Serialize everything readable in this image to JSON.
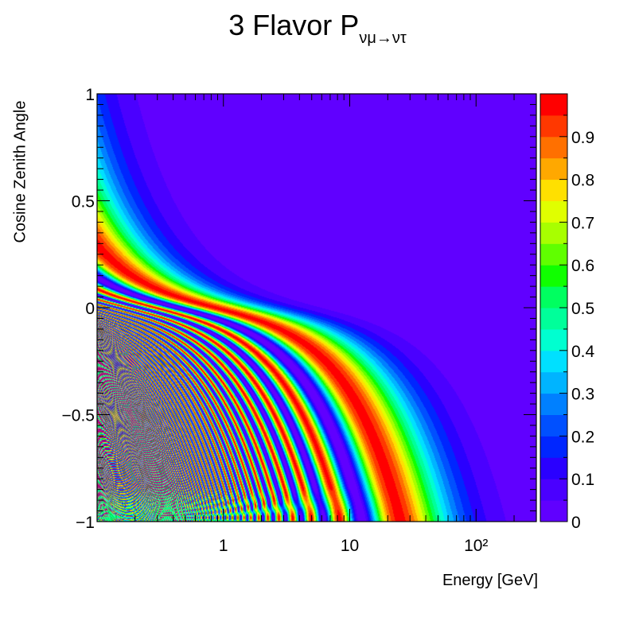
{
  "chart_data": {
    "type": "heatmap",
    "title": {
      "main": "3 Flavor P",
      "sub": "νμ→ντ"
    },
    "xlabel": "Energy [GeV]",
    "ylabel": "Cosine Zenith Angle",
    "x_scale": "log",
    "xlim": [
      0.1,
      300
    ],
    "ylim": [
      -1,
      1
    ],
    "x_tick_labels": [
      "1",
      "10",
      "10²"
    ],
    "x_tick_values": [
      1,
      10,
      100
    ],
    "y_tick_labels": [
      "−1",
      "−0.5",
      "0",
      "0.5",
      "1"
    ],
    "y_tick_values": [
      -1,
      -0.5,
      0,
      0.5,
      1
    ],
    "z_range": [
      0,
      1
    ],
    "colorbar_labels": [
      "0",
      "0.1",
      "0.2",
      "0.3",
      "0.4",
      "0.5",
      "0.6",
      "0.7",
      "0.8",
      "0.9"
    ],
    "colorbar_values": [
      0,
      0.1,
      0.2,
      0.3,
      0.4,
      0.5,
      0.6,
      0.7,
      0.8,
      0.9
    ],
    "levels": 20,
    "palette": [
      "#6000ff",
      "#4a00ff",
      "#2a00ff",
      "#0026ff",
      "#0050ff",
      "#0080ff",
      "#00b4ff",
      "#00e0ff",
      "#00ffd0",
      "#00ff9a",
      "#00ff60",
      "#10ff00",
      "#60ff00",
      "#a8ff00",
      "#e0ff00",
      "#ffe000",
      "#ffa800",
      "#ff7000",
      "#ff3800",
      "#ff0000"
    ]
  }
}
